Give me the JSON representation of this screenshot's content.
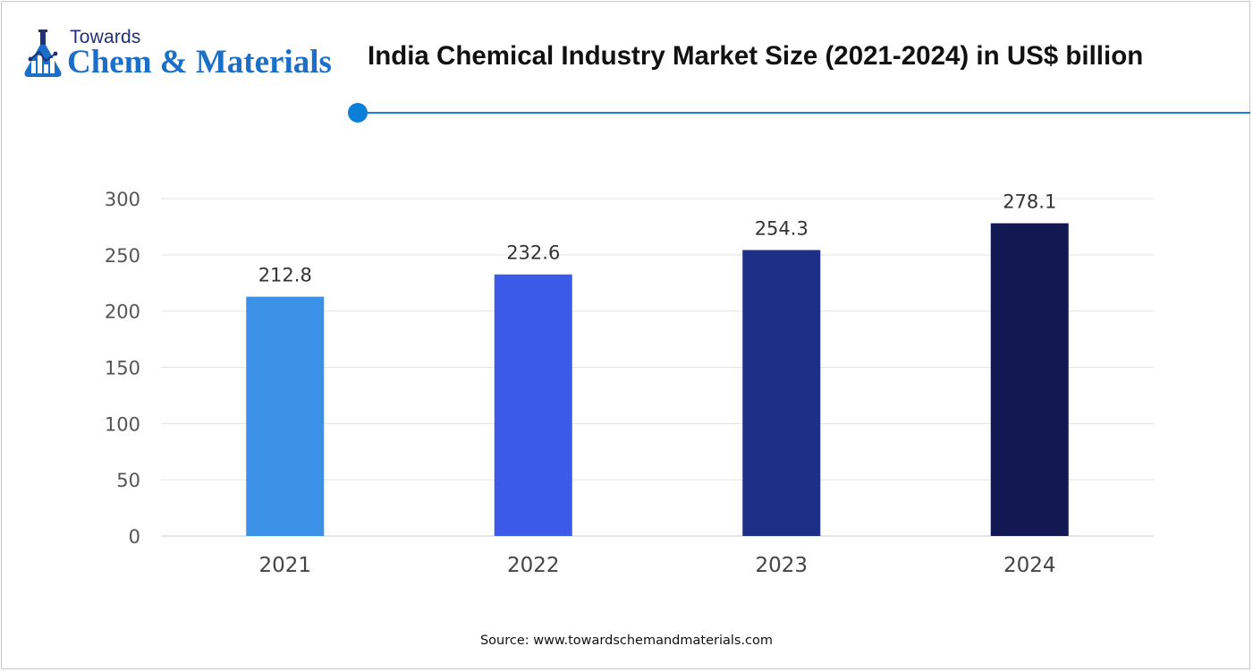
{
  "brand": {
    "top": "Towards",
    "main": "Chem & Materials",
    "colors": {
      "top": "#1f2f78",
      "main": "#1b6fc9"
    }
  },
  "header": {
    "title": "India Chemical Industry Market Size (2021-2024) in US$ billion",
    "accent": "#1b7ed6"
  },
  "chart_data": {
    "type": "bar",
    "title": "India Chemical Industry Market Size (2021-2024) in US$ billion",
    "xlabel": "",
    "ylabel": "",
    "categories": [
      "2021",
      "2022",
      "2023",
      "2024"
    ],
    "values": [
      212.8,
      232.6,
      254.3,
      278.1
    ],
    "value_labels": [
      "212.8",
      "232.6",
      "254.3",
      "278.1"
    ],
    "colors": [
      "#3a91e6",
      "#3b5ae8",
      "#1d2f87",
      "#111852"
    ],
    "ylim": [
      0,
      300
    ],
    "yticks": [
      0,
      50,
      100,
      150,
      200,
      250,
      300
    ],
    "grid": true,
    "legend": "none"
  },
  "footer": {
    "source": "Source: www.towardschemandmaterials.com"
  }
}
